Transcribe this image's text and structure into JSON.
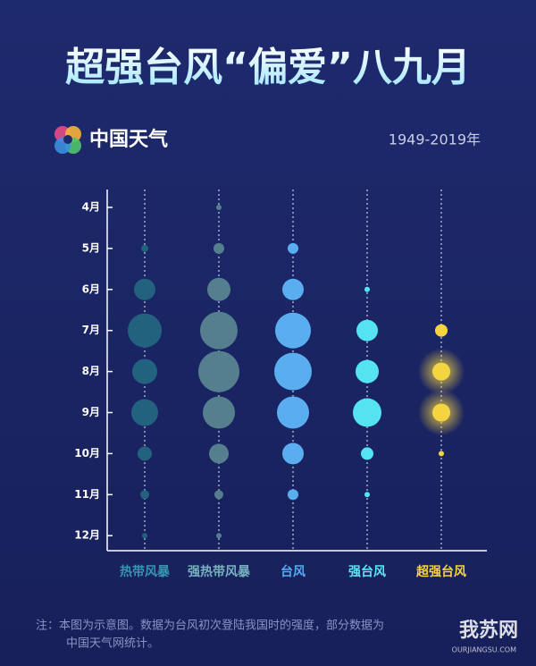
{
  "chart_data": {
    "type": "bubble",
    "title": "超强台风“偏爱”八九月",
    "brand": "中国天气",
    "subtitle": "1949-2019年",
    "categories": [
      "4月",
      "5月",
      "6月",
      "7月",
      "8月",
      "9月",
      "10月",
      "11月",
      "12月"
    ],
    "series": [
      {
        "name": "热带风暴",
        "color": "#23627f",
        "label_color": "#3796b0",
        "values": [
          null,
          4,
          12,
          19,
          14,
          15,
          8,
          5,
          3
        ]
      },
      {
        "name": "强热带风暴",
        "color": "#557f8e",
        "label_color": "#78b2c0",
        "values": [
          3,
          6,
          13,
          21,
          23,
          18,
          11,
          5,
          3
        ]
      },
      {
        "name": "台风",
        "color": "#5aaef0",
        "label_color": "#55aaf2",
        "values": [
          null,
          6,
          12,
          20,
          21,
          18,
          12,
          6,
          null
        ]
      },
      {
        "name": "强台风",
        "color": "#55e3f2",
        "label_color": "#5fe6f5",
        "values": [
          null,
          null,
          3,
          12,
          13,
          16,
          7,
          3,
          null
        ]
      },
      {
        "name": "超强台风",
        "color": "#f4d440",
        "label_color": "#f4d440",
        "values": [
          null,
          null,
          null,
          7,
          10,
          10,
          3,
          null,
          null
        ]
      }
    ],
    "note": [
      "注：本图为示意图。数据为台风初次登陆我国时的强度，部分数据为",
      "中国天气网统计。"
    ],
    "watermark": {
      "name": "我苏网",
      "url": "OURJIANGSU.COM"
    }
  }
}
